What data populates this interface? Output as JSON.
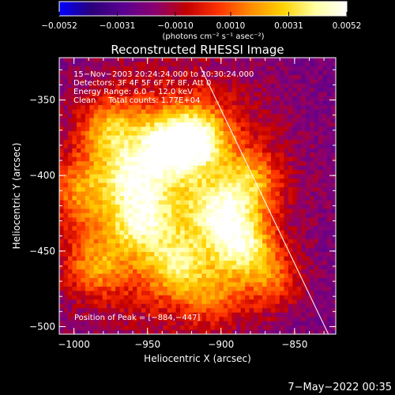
{
  "chart_data": {
    "type": "heatmap",
    "title": "Reconstructed RHESSI Image",
    "xlabel": "Heliocentric X (arcsec)",
    "ylabel": "Heliocentric Y (arcsec)",
    "xlim": [
      -1010,
      -822
    ],
    "ylim": [
      -505,
      -322
    ],
    "x_ticks": [
      -1000,
      -950,
      -900,
      -850
    ],
    "x_tick_labels": [
      "−1000",
      "−950",
      "−900",
      "−850"
    ],
    "y_ticks": [
      -350,
      -400,
      -450,
      -500
    ],
    "y_tick_labels": [
      "−350",
      "−400",
      "−450",
      "−500"
    ],
    "colorbar": {
      "range": [
        -0.0052,
        0.0052
      ],
      "tick_values": [
        -0.0052,
        -0.0031,
        -0.001,
        0.001,
        0.0031,
        0.0052
      ],
      "tick_labels": [
        "−0.0052",
        "−0.0031",
        "−0.0010",
        "0.0010",
        "0.0031",
        "0.0052"
      ],
      "unit_label": "(photons cm⁻² s⁻¹ asec⁻²)",
      "colors": [
        "#0000ff",
        "#2a007a",
        "#5a0090",
        "#8a0070",
        "#c40000",
        "#ff3300",
        "#ff8c00",
        "#ffd200",
        "#ffffa0",
        "#ffffff"
      ]
    },
    "annotations": {
      "line1": "15−Nov−2003 20:24:24.000 to 20:30:24.000",
      "line2": "Detectors: 3F 4F 5F 6F 7F 8F, Att 0",
      "line3": "Energy Range: 6.0 − 12.0 keV",
      "line4": "Clean     Total counts: 1.77E+04",
      "peak": "Position of Peak = [−884,−447]"
    },
    "peak_position": [
      -884,
      -447
    ],
    "limb_line": {
      "x1": -914,
      "y1": -328,
      "x2": -827,
      "y2": -505
    },
    "sources": [
      {
        "x": -935,
        "y": -380,
        "intensity": 1.0
      },
      {
        "x": -915,
        "y": -375,
        "intensity": 0.95
      },
      {
        "x": -885,
        "y": -447,
        "intensity": 1.0
      },
      {
        "x": -900,
        "y": -425,
        "intensity": 0.8
      },
      {
        "x": -955,
        "y": -430,
        "intensity": 0.75
      },
      {
        "x": -975,
        "y": -370,
        "intensity": 0.7
      },
      {
        "x": -930,
        "y": -460,
        "intensity": 0.7
      },
      {
        "x": -985,
        "y": -460,
        "intensity": 0.6
      },
      {
        "x": -880,
        "y": -405,
        "intensity": 0.65
      },
      {
        "x": -960,
        "y": -400,
        "intensity": 0.7
      },
      {
        "x": -905,
        "y": -480,
        "intensity": 0.45
      },
      {
        "x": -865,
        "y": -470,
        "intensity": 0.55
      },
      {
        "x": -995,
        "y": -410,
        "intensity": 0.55
      }
    ]
  },
  "footer": {
    "timestamp": "7−May−2022 00:35"
  }
}
